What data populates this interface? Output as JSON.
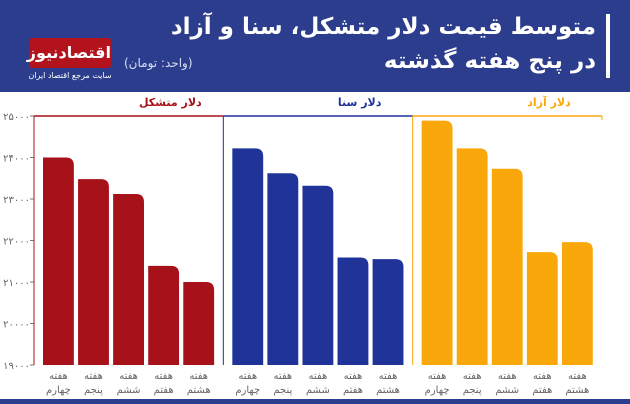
{
  "header": {
    "title": "متوسط قیمت دلار متشکل، سنا و آزاد در پنج هفته گذشته",
    "unit": "(واحد: تومان)",
    "logo_text": "اقتصادنیوز",
    "logo_sub": "سایت مرجع اقتصاد ایران",
    "background": "#2b3d8c"
  },
  "chart_data": {
    "type": "bar",
    "ylim": [
      19000,
      25000
    ],
    "yticks": [
      19000,
      20000,
      21000,
      22000,
      23000,
      24000,
      25000
    ],
    "ytick_labels": [
      "۱۹۰۰۰",
      "۲۰۰۰۰",
      "۲۱۰۰۰",
      "۲۲۰۰۰",
      "۲۳۰۰۰",
      "۲۴۰۰۰",
      "۲۵۰۰۰"
    ],
    "grid": false,
    "categories": [
      [
        "هفته",
        "چهارم"
      ],
      [
        "هفته",
        "پنجم"
      ],
      [
        "هفته",
        "ششم"
      ],
      [
        "هفته",
        "هفتم"
      ],
      [
        "هفته",
        "هشتم"
      ]
    ],
    "series": [
      {
        "name": "دلار متشکل",
        "color": "#a7111a",
        "values": [
          24000,
          23480,
          23120,
          21390,
          21000
        ]
      },
      {
        "name": "دلار سنا",
        "color": "#1f3399",
        "values": [
          24220,
          23620,
          23320,
          21590,
          21550
        ]
      },
      {
        "name": "دلار آزاد",
        "color": "#f9a70a",
        "values": [
          24890,
          24220,
          23730,
          21720,
          21960
        ]
      }
    ]
  }
}
